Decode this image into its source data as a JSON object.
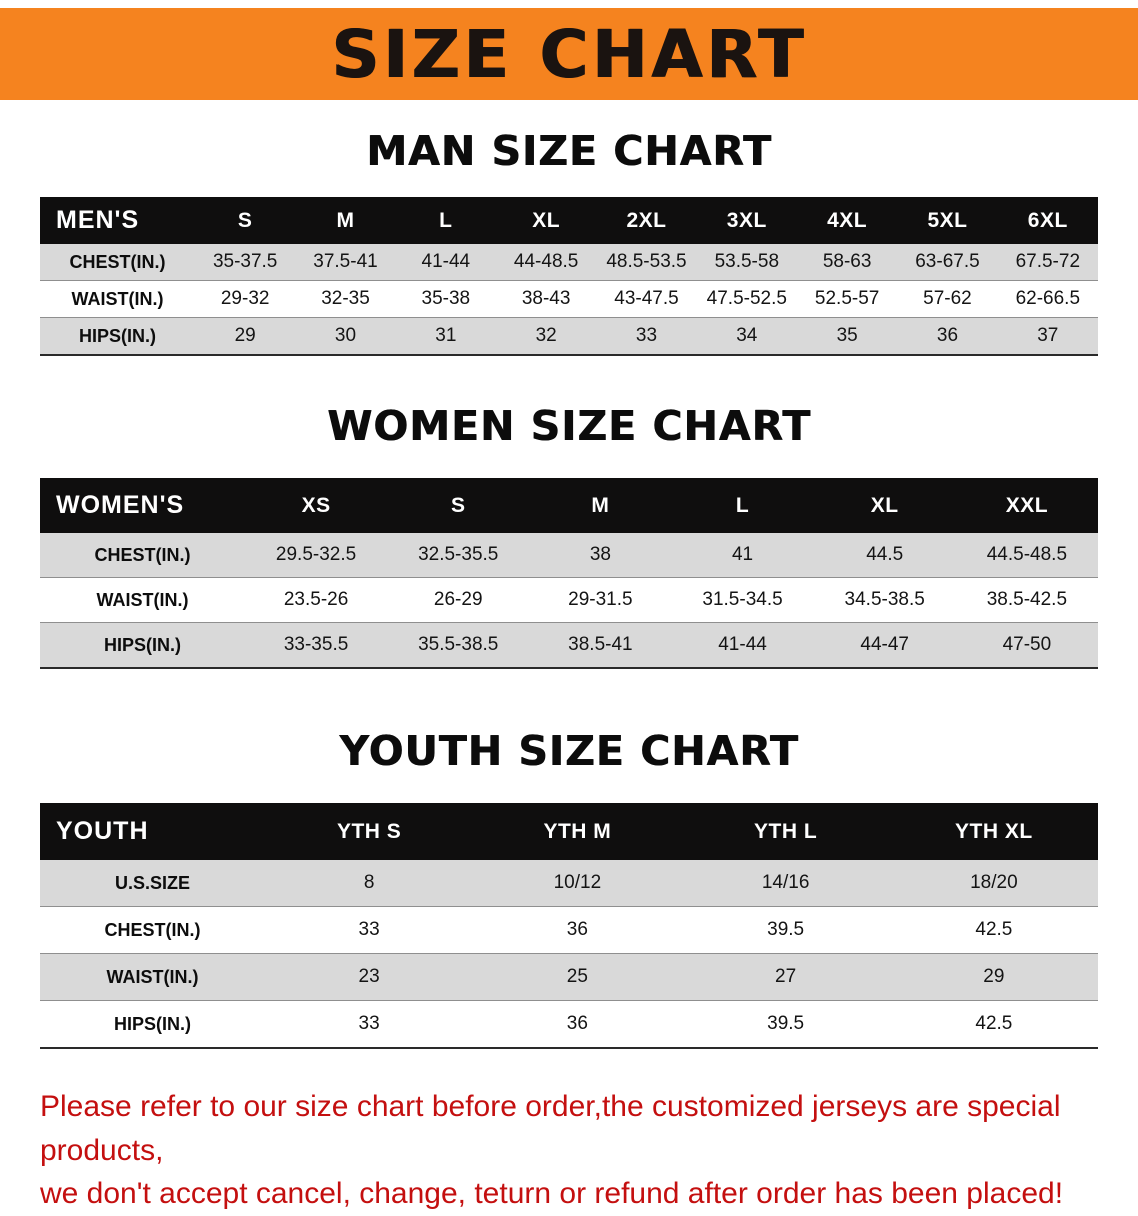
{
  "banner": {
    "title": "SIZE CHART"
  },
  "sections": [
    {
      "id": "men",
      "heading": "MAN SIZE CHART",
      "table": {
        "corner_label": "MEN'S",
        "columns": [
          "S",
          "M",
          "L",
          "XL",
          "2XL",
          "3XL",
          "4XL",
          "5XL",
          "6XL"
        ],
        "rows": [
          {
            "label": "CHEST(IN.)",
            "values": [
              "35-37.5",
              "37.5-41",
              "41-44",
              "44-48.5",
              "48.5-53.5",
              "53.5-58",
              "58-63",
              "63-67.5",
              "67.5-72"
            ]
          },
          {
            "label": "WAIST(IN.)",
            "values": [
              "29-32",
              "32-35",
              "35-38",
              "38-43",
              "43-47.5",
              "47.5-52.5",
              "52.5-57",
              "57-62",
              "62-66.5"
            ]
          },
          {
            "label": "HIPS(IN.)",
            "values": [
              "29",
              "30",
              "31",
              "32",
              "33",
              "34",
              "35",
              "36",
              "37"
            ]
          }
        ]
      }
    },
    {
      "id": "women",
      "heading": "WOMEN SIZE CHART",
      "table": {
        "corner_label": "WOMEN'S",
        "columns": [
          "XS",
          "S",
          "M",
          "L",
          "XL",
          "XXL"
        ],
        "rows": [
          {
            "label": "CHEST(IN.)",
            "values": [
              "29.5-32.5",
              "32.5-35.5",
              "38",
              "41",
              "44.5",
              "44.5-48.5"
            ]
          },
          {
            "label": "WAIST(IN.)",
            "values": [
              "23.5-26",
              "26-29",
              "29-31.5",
              "31.5-34.5",
              "34.5-38.5",
              "38.5-42.5"
            ]
          },
          {
            "label": "HIPS(IN.)",
            "values": [
              "33-35.5",
              "35.5-38.5",
              "38.5-41",
              "41-44",
              "44-47",
              "47-50"
            ]
          }
        ]
      }
    },
    {
      "id": "youth",
      "heading": "YOUTH SIZE CHART",
      "table": {
        "corner_label": "YOUTH",
        "columns": [
          "YTH S",
          "YTH M",
          "YTH L",
          "YTH XL"
        ],
        "rows": [
          {
            "label": "U.S.SIZE",
            "values": [
              "8",
              "10/12",
              "14/16",
              "18/20"
            ]
          },
          {
            "label": "CHEST(IN.)",
            "values": [
              "33",
              "36",
              "39.5",
              "42.5"
            ]
          },
          {
            "label": "WAIST(IN.)",
            "values": [
              "23",
              "25",
              "27",
              "29"
            ]
          },
          {
            "label": "HIPS(IN.)",
            "values": [
              "33",
              "36",
              "39.5",
              "42.5"
            ]
          }
        ]
      }
    }
  ],
  "footer": {
    "lines": [
      "Please refer to our size chart before order,the customized jerseys are special products,",
      "we don't accept cancel, change, teturn or refund after order has been placed!"
    ]
  },
  "colors": {
    "banner_bg": "#f5831f",
    "banner_text": "#1a1310",
    "table_header_bg": "#0f0e0e",
    "table_header_text": "#ffffff",
    "row_alt_bg": "#d9d9d9",
    "row_border": "#8f8f8f",
    "notice_text": "#c40f0f"
  }
}
